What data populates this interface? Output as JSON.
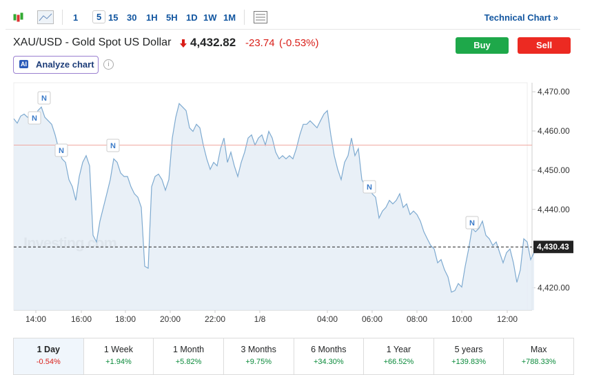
{
  "toolbar": {
    "intervals": [
      "1",
      "5",
      "15",
      "30",
      "1H",
      "5H",
      "1D",
      "1W",
      "1M"
    ],
    "active": "5",
    "link": "Technical Chart »"
  },
  "header": {
    "title": "XAU/USD - Gold Spot US Dollar",
    "price": "4,432.82",
    "change": "-23.74",
    "change_pct": "(-0.53%)",
    "buy": "Buy",
    "sell": "Sell",
    "ai_badge": "AI",
    "analyze": "Analyze chart",
    "info": "i"
  },
  "chart_data": {
    "type": "area",
    "color": "#7eaad0",
    "fill": "#e3ecf5",
    "values": [
      4463.1,
      4462.0,
      4463.8,
      4464.3,
      4463.5,
      4464.0,
      4462.6,
      4465.2,
      4466.1,
      4463.5,
      4462.6,
      4461.7,
      4459.0,
      4455.5,
      4452.9,
      4452.0,
      4447.6,
      4445.8,
      4442.3,
      4448.4,
      4452.0,
      4453.7,
      4451.1,
      4433.4,
      4431.7,
      4437.0,
      4440.5,
      4444.0,
      4447.6,
      4452.9,
      4452.0,
      4449.3,
      4448.4,
      4448.4,
      4445.8,
      4444.0,
      4443.1,
      4440.5,
      4425.5,
      4425.0,
      4445.8,
      4448.4,
      4449.0,
      4447.6,
      4444.9,
      4447.6,
      4458.2,
      4463.5,
      4467.0,
      4466.1,
      4465.2,
      4460.8,
      4459.9,
      4461.7,
      4460.8,
      4456.4,
      4452.9,
      4450.2,
      4452.0,
      4451.1,
      4455.5,
      4458.2,
      4452.0,
      4454.6,
      4451.1,
      4448.4,
      4452.0,
      4454.6,
      4458.2,
      4459.0,
      4456.4,
      4458.2,
      4459.0,
      4456.4,
      4459.9,
      4458.2,
      4454.6,
      4452.9,
      4453.7,
      4452.9,
      4453.7,
      4452.9,
      4455.5,
      4459.0,
      4461.7,
      4461.7,
      4462.6,
      4461.7,
      4460.8,
      4462.6,
      4464.3,
      4465.2,
      4459.0,
      4453.7,
      4450.2,
      4447.6,
      4452.0,
      4453.7,
      4458.2,
      4453.7,
      4455.5,
      4447.6,
      4445.8,
      4446.7,
      4444.0,
      4443.1,
      4437.8,
      4439.6,
      4440.5,
      4442.3,
      4441.4,
      4442.3,
      4444.0,
      4440.5,
      4441.4,
      4438.7,
      4439.6,
      4438.7,
      4437.0,
      4434.3,
      4432.5,
      4430.8,
      4429.9,
      4426.4,
      4427.2,
      4424.6,
      4422.8,
      4418.9,
      4419.3,
      4421.1,
      4420.2,
      4425.5,
      4429.9,
      4435.2,
      4434.3,
      4435.2,
      4437.0,
      4433.4,
      4432.5,
      4430.8,
      4431.7,
      4429.0,
      4426.4,
      4429.0,
      4429.9,
      4426.4,
      4421.4,
      4424.6,
      4432.5,
      4431.7,
      4427.2,
      4429.0
    ],
    "xlim": [
      0,
      149
    ],
    "xticks": [
      {
        "value": 6.4,
        "label": "14:00"
      },
      {
        "value": 19.6,
        "label": "16:00"
      },
      {
        "value": 32.4,
        "label": "18:00"
      },
      {
        "value": 45.4,
        "label": "20:00"
      },
      {
        "value": 58.4,
        "label": "22:00"
      },
      {
        "value": 71.4,
        "label": "1/8"
      },
      {
        "value": 91,
        "label": "04:00"
      },
      {
        "value": 104,
        "label": "06:00"
      },
      {
        "value": 117,
        "label": "08:00"
      },
      {
        "value": 130,
        "label": "10:00"
      },
      {
        "value": 143.2,
        "label": "12:00"
      }
    ],
    "ylim": [
      4414.3,
      4472.3
    ],
    "yticks": [
      {
        "value": 4420,
        "label": "4,420.00"
      },
      {
        "value": 4430,
        "label": "4,430.00"
      },
      {
        "value": 4440,
        "label": "4,440.00"
      },
      {
        "value": 4450,
        "label": "4,450.00"
      },
      {
        "value": 4460,
        "label": "4,460.00"
      },
      {
        "value": 4470,
        "label": "4,470.00"
      }
    ],
    "previous_close": {
      "value": 4456.4,
      "color": "#f0a8a0"
    },
    "last_price": {
      "value": 4430.43,
      "label": "4,430.43"
    },
    "news_markers": [
      "N",
      "N",
      "N",
      "N",
      "N",
      "N"
    ],
    "watermark": "Investing.com"
  },
  "periods": [
    {
      "name": "1 Day",
      "change": "-0.54%"
    },
    {
      "name": "1 Week",
      "change": "+1.94%"
    },
    {
      "name": "1 Month",
      "change": "+5.82%"
    },
    {
      "name": "3 Months",
      "change": "+9.75%"
    },
    {
      "name": "6 Months",
      "change": "+34.30%"
    },
    {
      "name": "1 Year",
      "change": "+66.52%"
    },
    {
      "name": "5 years",
      "change": "+139.83%"
    },
    {
      "name": "Max",
      "change": "+788.33%"
    }
  ]
}
